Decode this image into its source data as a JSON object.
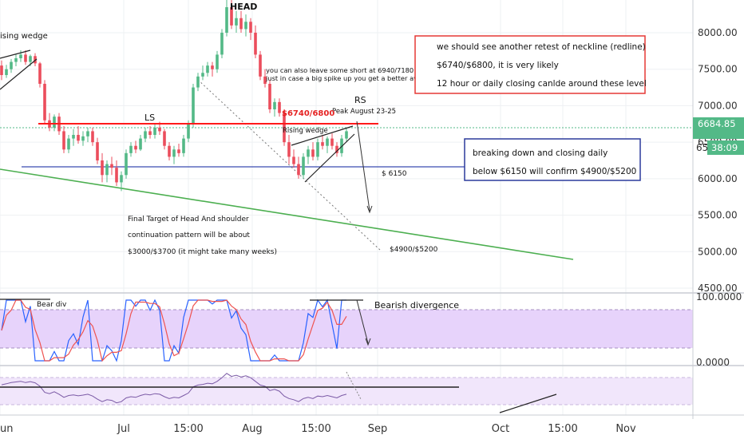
{
  "chart_data": {
    "type": "candlestick",
    "title": "",
    "price_axis": {
      "range": [
        4400,
        8450
      ],
      "ticks": [
        "8000.00",
        "7500.00",
        "7000.00",
        "6500.00",
        "6000.00",
        "5500.00",
        "5000.00",
        "4500.00"
      ],
      "last_price": "6684.85",
      "countdown": "38:09",
      "partial_tick": "65"
    },
    "x_axis": {
      "labels": [
        "Jun",
        "Jul",
        "15:00",
        "Aug",
        "15:00",
        "Sep",
        "Oct",
        "15:00",
        "Nov"
      ]
    },
    "candles": [
      {
        "o": 7550,
        "h": 7620,
        "l": 7350,
        "c": 7420
      },
      {
        "o": 7420,
        "h": 7560,
        "l": 7380,
        "c": 7500
      },
      {
        "o": 7500,
        "h": 7640,
        "l": 7450,
        "c": 7600
      },
      {
        "o": 7600,
        "h": 7700,
        "l": 7540,
        "c": 7650
      },
      {
        "o": 7650,
        "h": 7760,
        "l": 7600,
        "c": 7700
      },
      {
        "o": 7700,
        "h": 7760,
        "l": 7560,
        "c": 7600
      },
      {
        "o": 7600,
        "h": 7700,
        "l": 7540,
        "c": 7680
      },
      {
        "o": 7680,
        "h": 7720,
        "l": 7540,
        "c": 7580
      },
      {
        "o": 7580,
        "h": 7600,
        "l": 7250,
        "c": 7300
      },
      {
        "o": 7300,
        "h": 7350,
        "l": 6750,
        "c": 6800
      },
      {
        "o": 6800,
        "h": 6900,
        "l": 6650,
        "c": 6700
      },
      {
        "o": 6700,
        "h": 6880,
        "l": 6650,
        "c": 6850
      },
      {
        "o": 6850,
        "h": 6900,
        "l": 6600,
        "c": 6650
      },
      {
        "o": 6650,
        "h": 6720,
        "l": 6350,
        "c": 6400
      },
      {
        "o": 6400,
        "h": 6600,
        "l": 6350,
        "c": 6550
      },
      {
        "o": 6550,
        "h": 6680,
        "l": 6450,
        "c": 6600
      },
      {
        "o": 6600,
        "h": 6720,
        "l": 6480,
        "c": 6520
      },
      {
        "o": 6520,
        "h": 6650,
        "l": 6450,
        "c": 6580
      },
      {
        "o": 6580,
        "h": 6700,
        "l": 6500,
        "c": 6650
      },
      {
        "o": 6650,
        "h": 6700,
        "l": 6450,
        "c": 6500
      },
      {
        "o": 6500,
        "h": 6560,
        "l": 6200,
        "c": 6250
      },
      {
        "o": 6250,
        "h": 6350,
        "l": 5950,
        "c": 6050
      },
      {
        "o": 6050,
        "h": 6250,
        "l": 5950,
        "c": 6200
      },
      {
        "o": 6200,
        "h": 6300,
        "l": 6050,
        "c": 6150
      },
      {
        "o": 6150,
        "h": 6250,
        "l": 5900,
        "c": 5950
      },
      {
        "o": 5950,
        "h": 6100,
        "l": 5830,
        "c": 6050
      },
      {
        "o": 6050,
        "h": 6400,
        "l": 6000,
        "c": 6350
      },
      {
        "o": 6350,
        "h": 6500,
        "l": 6300,
        "c": 6450
      },
      {
        "o": 6450,
        "h": 6520,
        "l": 6350,
        "c": 6400
      },
      {
        "o": 6400,
        "h": 6600,
        "l": 6380,
        "c": 6550
      },
      {
        "o": 6550,
        "h": 6700,
        "l": 6500,
        "c": 6650
      },
      {
        "o": 6650,
        "h": 6720,
        "l": 6550,
        "c": 6600
      },
      {
        "o": 6600,
        "h": 6760,
        "l": 6550,
        "c": 6700
      },
      {
        "o": 6700,
        "h": 6780,
        "l": 6600,
        "c": 6650
      },
      {
        "o": 6650,
        "h": 6680,
        "l": 6400,
        "c": 6450
      },
      {
        "o": 6450,
        "h": 6500,
        "l": 6250,
        "c": 6300
      },
      {
        "o": 6300,
        "h": 6450,
        "l": 6200,
        "c": 6400
      },
      {
        "o": 6400,
        "h": 6480,
        "l": 6300,
        "c": 6350
      },
      {
        "o": 6350,
        "h": 6600,
        "l": 6300,
        "c": 6550
      },
      {
        "o": 6550,
        "h": 6800,
        "l": 6500,
        "c": 6750
      },
      {
        "o": 6750,
        "h": 7300,
        "l": 6700,
        "c": 7250
      },
      {
        "o": 7250,
        "h": 7450,
        "l": 7200,
        "c": 7400
      },
      {
        "o": 7400,
        "h": 7550,
        "l": 7350,
        "c": 7450
      },
      {
        "o": 7450,
        "h": 7600,
        "l": 7400,
        "c": 7550
      },
      {
        "o": 7550,
        "h": 7600,
        "l": 7400,
        "c": 7500
      },
      {
        "o": 7500,
        "h": 7750,
        "l": 7450,
        "c": 7700
      },
      {
        "o": 7700,
        "h": 8050,
        "l": 7650,
        "c": 8000
      },
      {
        "o": 8000,
        "h": 8450,
        "l": 7950,
        "c": 8350
      },
      {
        "o": 8350,
        "h": 8450,
        "l": 8050,
        "c": 8100
      },
      {
        "o": 8100,
        "h": 8300,
        "l": 8000,
        "c": 8200
      },
      {
        "o": 8200,
        "h": 8300,
        "l": 8000,
        "c": 8050
      },
      {
        "o": 8050,
        "h": 8250,
        "l": 7950,
        "c": 8150
      },
      {
        "o": 8150,
        "h": 8200,
        "l": 7900,
        "c": 8000
      },
      {
        "o": 8000,
        "h": 8100,
        "l": 7650,
        "c": 7700
      },
      {
        "o": 7700,
        "h": 7750,
        "l": 7350,
        "c": 7400
      },
      {
        "o": 7400,
        "h": 7500,
        "l": 7250,
        "c": 7300
      },
      {
        "o": 7300,
        "h": 7350,
        "l": 6900,
        "c": 6950
      },
      {
        "o": 6950,
        "h": 7100,
        "l": 6850,
        "c": 7050
      },
      {
        "o": 7050,
        "h": 7100,
        "l": 6850,
        "c": 6900
      },
      {
        "o": 6900,
        "h": 6950,
        "l": 6450,
        "c": 6500
      },
      {
        "o": 6500,
        "h": 6600,
        "l": 6200,
        "c": 6300
      },
      {
        "o": 6300,
        "h": 6400,
        "l": 6150,
        "c": 6200
      },
      {
        "o": 6200,
        "h": 6300,
        "l": 6000,
        "c": 6050
      },
      {
        "o": 6050,
        "h": 6350,
        "l": 6000,
        "c": 6300
      },
      {
        "o": 6300,
        "h": 6450,
        "l": 6200,
        "c": 6400
      },
      {
        "o": 6400,
        "h": 6500,
        "l": 6250,
        "c": 6300
      },
      {
        "o": 6300,
        "h": 6550,
        "l": 6250,
        "c": 6500
      },
      {
        "o": 6500,
        "h": 6600,
        "l": 6400,
        "c": 6450
      },
      {
        "o": 6450,
        "h": 6580,
        "l": 6350,
        "c": 6550
      },
      {
        "o": 6550,
        "h": 6620,
        "l": 6400,
        "c": 6450
      },
      {
        "o": 6450,
        "h": 6500,
        "l": 6300,
        "c": 6350
      },
      {
        "o": 6350,
        "h": 6600,
        "l": 6300,
        "c": 6550
      },
      {
        "o": 6550,
        "h": 6700,
        "l": 6500,
        "c": 6650
      }
    ],
    "neckline": 6740,
    "support": 6150,
    "annotations": {
      "rising_wedge_left": "ising wedge",
      "head": "HEAD",
      "ls": "LS",
      "rs": "RS",
      "rs_sub": "Peak August 23-25",
      "short_note_1": "you can also leave some short at 6940/7180",
      "short_note_2": "just in case a big spike up you get a better avg",
      "neck_label": "$6740/6800",
      "rising_wedge_right": "Rising wedge",
      "support_label": "$ 6150",
      "final_target_1": "Final Target of Head And shoulder",
      "final_target_2": "continuation pattern will be about",
      "final_target_3": "$3000/$3700  (it might take many weeks)",
      "target_label": "$4900/$5200",
      "box_red": [
        "we should see another retest of neckline (redline)",
        "$6740/$6800, it is  very likely",
        "12 hour or daily closing canlde around these level"
      ],
      "box_blue": [
        "breaking down and closing daily",
        "below $6150 will confirm $4900/$5200"
      ],
      "bear_div": "Bear div",
      "bearish_divergence": "Bearish divergence"
    },
    "stoch_axis": {
      "top": "100.0000",
      "bottom": "0.0000"
    },
    "colors": {
      "up": "#53b987",
      "down": "#eb4d5c",
      "neckline": "#ff1a1a",
      "support": "#3a4cb0",
      "trend": "#4caf50",
      "band": "#e7d3fb",
      "box_red": "#e53935",
      "box_blue": "#2b3a9c"
    }
  }
}
